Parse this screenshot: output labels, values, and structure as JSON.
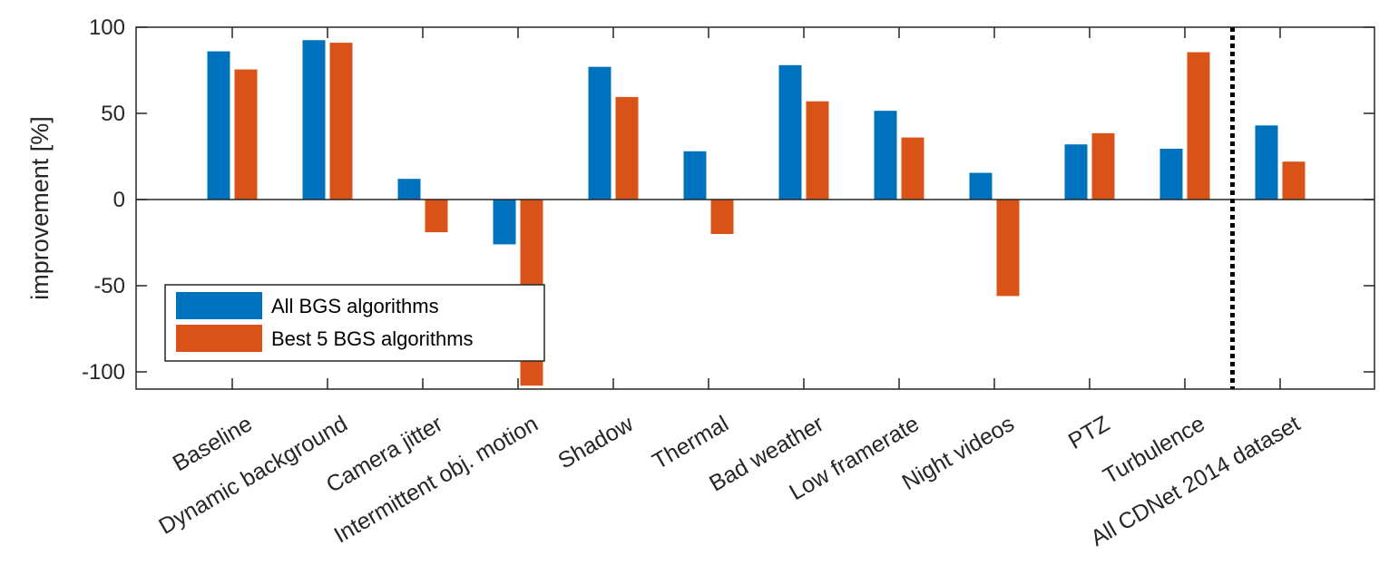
{
  "chart_data": {
    "type": "bar",
    "title": "",
    "xlabel": "",
    "ylabel": "improvement [%]",
    "ylim": [
      -110,
      100
    ],
    "yticks": [
      100,
      50,
      0,
      -50,
      -100
    ],
    "yticklabels": [
      "100",
      "50",
      "0",
      "-50",
      "-100"
    ],
    "grid": false,
    "legend_position": "lower-left",
    "categories": [
      "Baseline",
      "Dynamic background",
      "Camera jitter",
      "Intermittent obj. motion",
      "Shadow",
      "Thermal",
      "Bad weather",
      "Low framerate",
      "Night videos",
      "PTZ",
      "Turbulence",
      "All CDNet 2014 dataset"
    ],
    "series": [
      {
        "name": "All BGS algorithms",
        "color": "#0072BD",
        "values": [
          86,
          92.5,
          12,
          -26,
          77,
          28,
          78,
          51.5,
          15.5,
          32,
          29.5,
          43
        ]
      },
      {
        "name": "Best 5 BGS algorithms",
        "color": "#D95319",
        "values": [
          75.5,
          91,
          -19,
          -108,
          59.5,
          -20,
          57,
          36,
          -56,
          38.5,
          85.5,
          22
        ]
      }
    ],
    "separator": {
      "after_category_index": 10,
      "style": "dotted",
      "color": "#000000"
    }
  }
}
